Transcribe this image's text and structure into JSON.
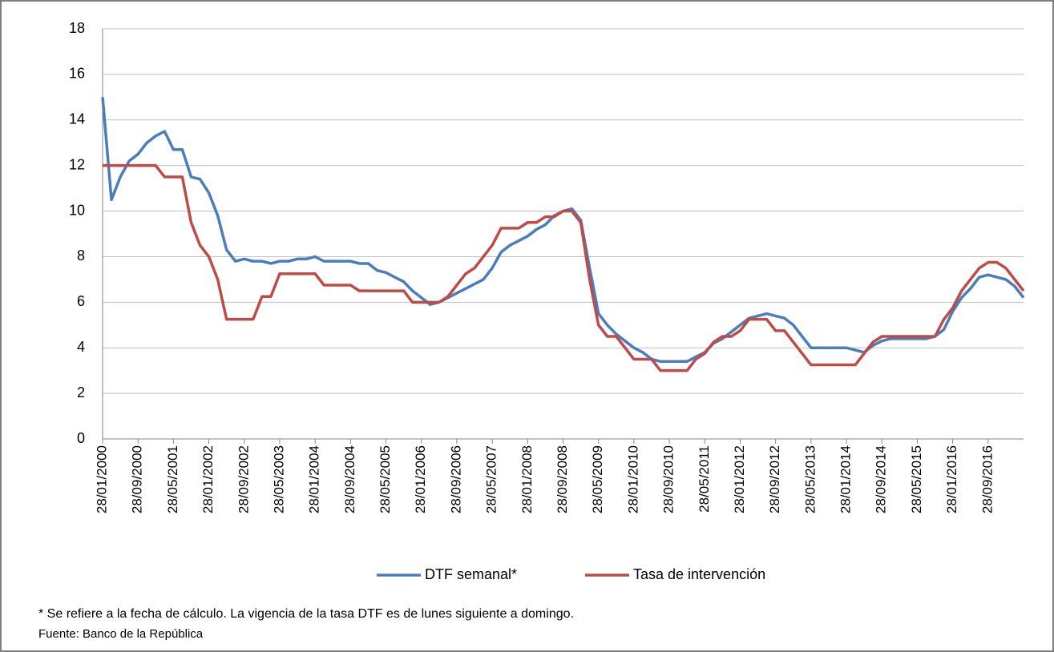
{
  "chart_data": {
    "type": "line",
    "x": [
      "28/01/2000",
      "28/03/2000",
      "28/05/2000",
      "28/07/2000",
      "28/09/2000",
      "28/11/2000",
      "28/01/2001",
      "28/03/2001",
      "28/05/2001",
      "28/07/2001",
      "28/09/2001",
      "28/11/2001",
      "28/01/2002",
      "28/03/2002",
      "28/05/2002",
      "28/07/2002",
      "28/09/2002",
      "28/11/2002",
      "28/01/2003",
      "28/03/2003",
      "28/05/2003",
      "28/07/2003",
      "28/09/2003",
      "28/11/2003",
      "28/01/2004",
      "28/03/2004",
      "28/05/2004",
      "28/07/2004",
      "28/09/2004",
      "28/11/2004",
      "28/01/2005",
      "28/03/2005",
      "28/05/2005",
      "28/07/2005",
      "28/09/2005",
      "28/11/2005",
      "28/01/2006",
      "28/03/2006",
      "28/05/2006",
      "28/07/2006",
      "28/09/2006",
      "28/11/2006",
      "28/01/2007",
      "28/03/2007",
      "28/05/2007",
      "28/07/2007",
      "28/09/2007",
      "28/11/2007",
      "28/01/2008",
      "28/03/2008",
      "28/05/2008",
      "28/07/2008",
      "28/09/2008",
      "28/11/2008",
      "28/01/2009",
      "28/03/2009",
      "28/05/2009",
      "28/07/2009",
      "28/09/2009",
      "28/11/2009",
      "28/01/2010",
      "28/03/2010",
      "28/05/2010",
      "28/07/2010",
      "28/09/2010",
      "28/11/2010",
      "28/01/2011",
      "28/03/2011",
      "28/05/2011",
      "28/07/2011",
      "28/09/2011",
      "28/11/2011",
      "28/01/2012",
      "28/03/2012",
      "28/05/2012",
      "28/07/2012",
      "28/09/2012",
      "28/11/2012",
      "28/01/2013",
      "28/03/2013",
      "28/05/2013",
      "28/07/2013",
      "28/09/2013",
      "28/11/2013",
      "28/01/2014",
      "28/03/2014",
      "28/05/2014",
      "28/07/2014",
      "28/09/2014",
      "28/11/2014",
      "28/01/2015",
      "28/03/2015",
      "28/05/2015",
      "28/07/2015",
      "28/09/2015",
      "28/11/2015",
      "28/01/2016",
      "28/03/2016",
      "28/05/2016",
      "28/07/2016",
      "28/09/2016",
      "28/11/2016",
      "28/01/2017",
      "28/03/2017",
      "28/05/2017"
    ],
    "xticks": [
      "28/01/2000",
      "28/09/2000",
      "28/05/2001",
      "28/01/2002",
      "28/09/2002",
      "28/05/2003",
      "28/01/2004",
      "28/09/2004",
      "28/05/2005",
      "28/01/2006",
      "28/09/2006",
      "28/05/2007",
      "28/01/2008",
      "28/09/2008",
      "28/05/2009",
      "28/01/2010",
      "28/09/2010",
      "28/05/2011",
      "28/01/2012",
      "28/09/2012",
      "28/05/2013",
      "28/01/2014",
      "28/09/2014",
      "28/05/2015",
      "28/01/2016",
      "28/09/2016"
    ],
    "series": [
      {
        "name": "DTF semanal*",
        "color": "#4a7ebb",
        "values": [
          15,
          10.5,
          11.5,
          12.2,
          12.5,
          13.0,
          13.3,
          13.5,
          12.7,
          12.7,
          11.5,
          11.4,
          10.8,
          9.8,
          8.3,
          7.8,
          7.9,
          7.8,
          7.8,
          7.7,
          7.8,
          7.8,
          7.9,
          7.9,
          8.0,
          7.8,
          7.8,
          7.8,
          7.8,
          7.7,
          7.7,
          7.4,
          7.3,
          7.1,
          6.9,
          6.5,
          6.2,
          5.9,
          6.0,
          6.2,
          6.4,
          6.6,
          6.8,
          7.0,
          7.5,
          8.2,
          8.5,
          8.7,
          8.9,
          9.2,
          9.4,
          9.8,
          10.0,
          10.1,
          9.6,
          7.5,
          5.5,
          5.0,
          4.6,
          4.3,
          4.0,
          3.8,
          3.5,
          3.4,
          3.4,
          3.4,
          3.4,
          3.6,
          3.8,
          4.2,
          4.4,
          4.7,
          5.0,
          5.3,
          5.4,
          5.5,
          5.4,
          5.3,
          5.0,
          4.5,
          4.0,
          4.0,
          4.0,
          4.0,
          4.0,
          3.9,
          3.8,
          4.1,
          4.3,
          4.4,
          4.4,
          4.4,
          4.4,
          4.4,
          4.5,
          4.8,
          5.6,
          6.2,
          6.6,
          7.1,
          7.2,
          7.1,
          7.0,
          6.7,
          6.2
        ]
      },
      {
        "name": "Tasa de intervención",
        "color": "#be4b48",
        "values": [
          12,
          12,
          12,
          12,
          12,
          12,
          12,
          11.5,
          11.5,
          11.5,
          9.5,
          8.5,
          8,
          7,
          5.25,
          5.25,
          5.25,
          5.25,
          6.25,
          6.25,
          7.25,
          7.25,
          7.25,
          7.25,
          7.25,
          6.75,
          6.75,
          6.75,
          6.75,
          6.5,
          6.5,
          6.5,
          6.5,
          6.5,
          6.5,
          6,
          6,
          6,
          6,
          6.25,
          6.75,
          7.25,
          7.5,
          8,
          8.5,
          9.25,
          9.25,
          9.25,
          9.5,
          9.5,
          9.75,
          9.75,
          10,
          10,
          9.5,
          7,
          5,
          4.5,
          4.5,
          4,
          3.5,
          3.5,
          3.5,
          3,
          3,
          3,
          3,
          3.5,
          3.75,
          4.25,
          4.5,
          4.5,
          4.75,
          5.25,
          5.25,
          5.25,
          4.75,
          4.75,
          4.25,
          3.75,
          3.25,
          3.25,
          3.25,
          3.25,
          3.25,
          3.25,
          3.75,
          4.25,
          4.5,
          4.5,
          4.5,
          4.5,
          4.5,
          4.5,
          4.5,
          5.25,
          5.75,
          6.5,
          7,
          7.5,
          7.75,
          7.75,
          7.5,
          7,
          6.5
        ]
      }
    ],
    "ylim": [
      0,
      18
    ],
    "yticks": [
      0,
      2,
      4,
      6,
      8,
      10,
      12,
      14,
      16,
      18
    ],
    "grid": true,
    "legend": "bottom",
    "notes": [
      "* Se refiere a la fecha de cálculo. La vigencia de la tasa DTF es de lunes siguiente a domingo.",
      "Fuente: Banco de la República"
    ]
  }
}
